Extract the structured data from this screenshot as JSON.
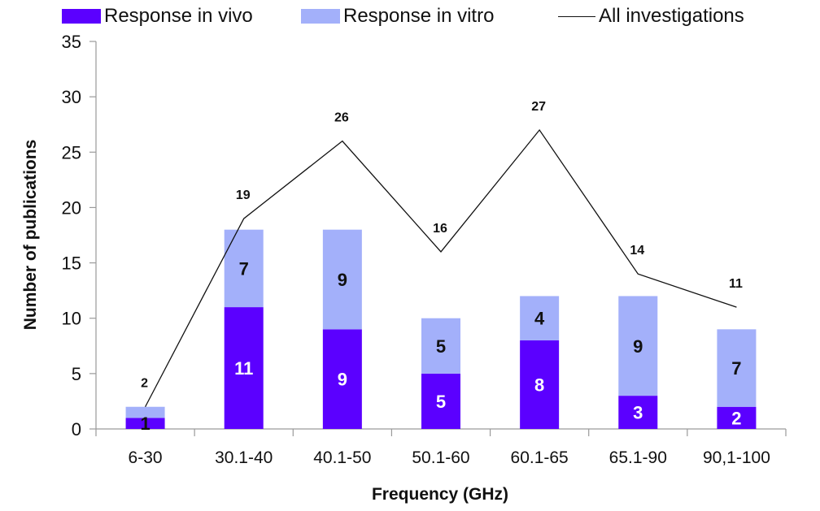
{
  "chart_data": {
    "type": "bar",
    "stacked": true,
    "title": "",
    "xlabel": "Frequency (GHz)",
    "ylabel": "Number of publications",
    "ylim": [
      0,
      35
    ],
    "yticks": [
      0,
      5,
      10,
      15,
      20,
      25,
      30,
      35
    ],
    "grid": false,
    "legend_position": "top",
    "categories": [
      "6-30",
      "30.1-40",
      "40.1-50",
      "50.1-60",
      "60.1-65",
      "65.1-90",
      "90,1-100"
    ],
    "series": [
      {
        "name": "Response in vivo",
        "kind": "bar",
        "color": "#5b00ff",
        "label_color": "#ffffff",
        "values": [
          1,
          11,
          9,
          5,
          8,
          3,
          2
        ]
      },
      {
        "name": "Response in vitro",
        "kind": "bar",
        "color": "#a3b0fa",
        "label_color": "#111111",
        "values": [
          1,
          7,
          9,
          5,
          4,
          9,
          7
        ]
      },
      {
        "name": "All investigations",
        "kind": "line",
        "color": "#111111",
        "values": [
          2,
          19,
          26,
          16,
          27,
          14,
          11
        ]
      }
    ],
    "vitro_labels_shown": [
      false,
      true,
      true,
      true,
      true,
      true,
      true
    ]
  }
}
